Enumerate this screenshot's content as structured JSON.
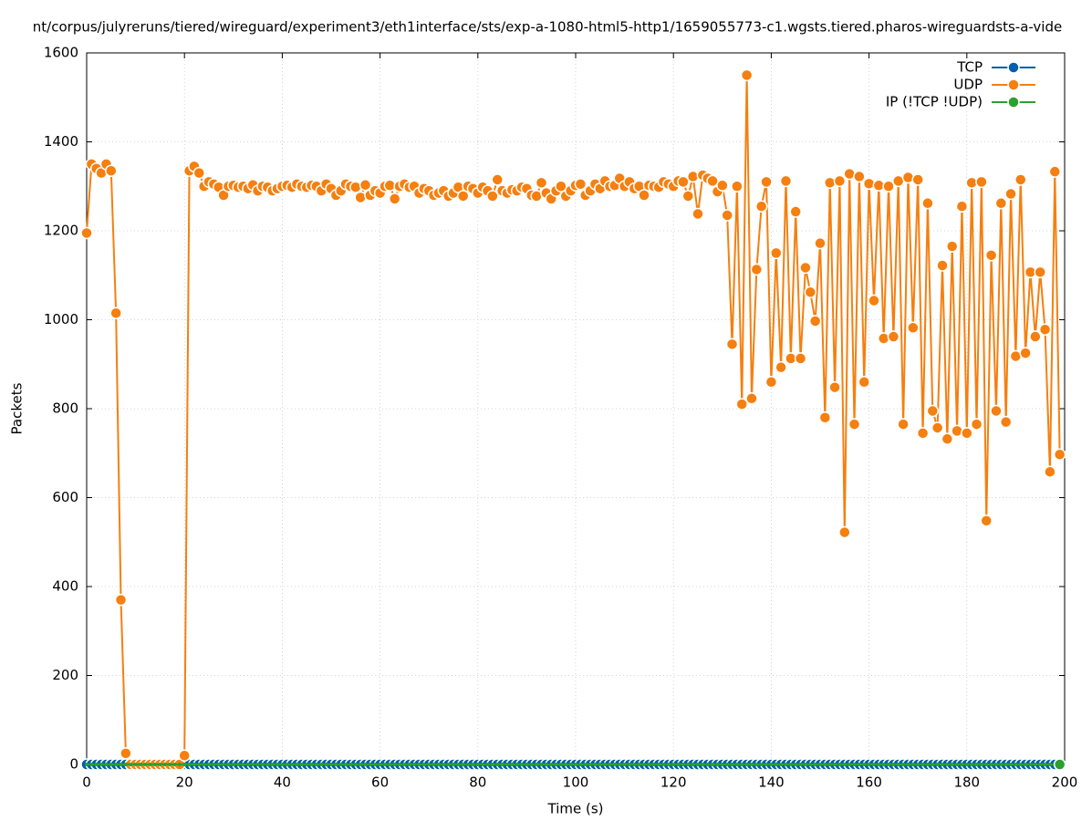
{
  "chart_data": {
    "type": "line",
    "title": "nt/corpus/julyreruns/tiered/wireguard/experiment3/eth1interface/sts/exp-a-1080-html5-http1/1659055773-c1.wgsts.tiered.pharos-wireguardsts-a-vide",
    "xlabel": "Time (s)",
    "ylabel": "Packets",
    "x": [
      0,
      1,
      2,
      3,
      4,
      5,
      6,
      7,
      8,
      9,
      10,
      11,
      12,
      13,
      14,
      15,
      16,
      17,
      18,
      19,
      20,
      21,
      22,
      23,
      24,
      25,
      26,
      27,
      28,
      29,
      30,
      31,
      32,
      33,
      34,
      35,
      36,
      37,
      38,
      39,
      40,
      41,
      42,
      43,
      44,
      45,
      46,
      47,
      48,
      49,
      50,
      51,
      52,
      53,
      54,
      55,
      56,
      57,
      58,
      59,
      60,
      61,
      62,
      63,
      64,
      65,
      66,
      67,
      68,
      69,
      70,
      71,
      72,
      73,
      74,
      75,
      76,
      77,
      78,
      79,
      80,
      81,
      82,
      83,
      84,
      85,
      86,
      87,
      88,
      89,
      90,
      91,
      92,
      93,
      94,
      95,
      96,
      97,
      98,
      99,
      100,
      101,
      102,
      103,
      104,
      105,
      106,
      107,
      108,
      109,
      110,
      111,
      112,
      113,
      114,
      115,
      116,
      117,
      118,
      119,
      120,
      121,
      122,
      123,
      124,
      125,
      126,
      127,
      128,
      129,
      130,
      131,
      132,
      133,
      134,
      135,
      136,
      137,
      138,
      139,
      140,
      141,
      142,
      143,
      144,
      145,
      146,
      147,
      148,
      149,
      150,
      151,
      152,
      153,
      154,
      155,
      156,
      157,
      158,
      159,
      160,
      161,
      162,
      163,
      164,
      165,
      166,
      167,
      168,
      169,
      170,
      171,
      172,
      173,
      174,
      175,
      176,
      177,
      178,
      179,
      180,
      181,
      182,
      183,
      184,
      185,
      186,
      187,
      188,
      189,
      190,
      191,
      192,
      193,
      194,
      195,
      196,
      197,
      198,
      199
    ],
    "series": [
      {
        "name": "TCP",
        "color": "#0060ad",
        "values": [
          0,
          0,
          0,
          0,
          0,
          0,
          0,
          0,
          0,
          0,
          0,
          0,
          0,
          0,
          0,
          0,
          0,
          0,
          0,
          0,
          0,
          0,
          0,
          0,
          0,
          0,
          0,
          0,
          0,
          0,
          0,
          0,
          0,
          0,
          0,
          0,
          0,
          0,
          0,
          0,
          0,
          0,
          0,
          0,
          0,
          0,
          0,
          0,
          0,
          0,
          0,
          0,
          0,
          0,
          0,
          0,
          0,
          0,
          0,
          0,
          0,
          0,
          0,
          0,
          0,
          0,
          0,
          0,
          0,
          0,
          0,
          0,
          0,
          0,
          0,
          0,
          0,
          0,
          0,
          0,
          0,
          0,
          0,
          0,
          0,
          0,
          0,
          0,
          0,
          0,
          0,
          0,
          0,
          0,
          0,
          0,
          0,
          0,
          0,
          0,
          0,
          0,
          0,
          0,
          0,
          0,
          0,
          0,
          0,
          0,
          0,
          0,
          0,
          0,
          0,
          0,
          0,
          0,
          0,
          0,
          0,
          0,
          0,
          0,
          0,
          0,
          0,
          0,
          0,
          0,
          0,
          0,
          0,
          0,
          0,
          0,
          0,
          0,
          0,
          0,
          0,
          0,
          0,
          0,
          0,
          0,
          0,
          0,
          0,
          0,
          0,
          0,
          0,
          0,
          0,
          0,
          0,
          0,
          0,
          0,
          0,
          0,
          0,
          0,
          0,
          0,
          0,
          0,
          0,
          0,
          0,
          0,
          0,
          0,
          0,
          0,
          0,
          0,
          0,
          0,
          0,
          0,
          0,
          0,
          0,
          0,
          0,
          0,
          0,
          0,
          0,
          0,
          0,
          0,
          0,
          0,
          0,
          0,
          0,
          0
        ]
      },
      {
        "name": "UDP",
        "color": "#f57f0f",
        "values": [
          1195,
          1350,
          1340,
          1330,
          1350,
          1335,
          1015,
          370,
          25,
          0,
          0,
          0,
          0,
          0,
          0,
          0,
          0,
          0,
          0,
          0,
          20,
          1335,
          1345,
          1330,
          1300,
          1310,
          1305,
          1298,
          1280,
          1300,
          1302,
          1298,
          1300,
          1295,
          1303,
          1290,
          1300,
          1298,
          1290,
          1295,
          1300,
          1302,
          1298,
          1305,
          1300,
          1298,
          1302,
          1300,
          1290,
          1305,
          1295,
          1280,
          1290,
          1305,
          1300,
          1298,
          1275,
          1303,
          1280,
          1290,
          1285,
          1300,
          1302,
          1272,
          1300,
          1305,
          1298,
          1300,
          1285,
          1295,
          1290,
          1280,
          1285,
          1290,
          1278,
          1285,
          1298,
          1278,
          1300,
          1295,
          1285,
          1298,
          1290,
          1278,
          1315,
          1290,
          1285,
          1292,
          1290,
          1298,
          1295,
          1280,
          1278,
          1308,
          1285,
          1272,
          1290,
          1300,
          1278,
          1290,
          1302,
          1305,
          1280,
          1290,
          1305,
          1295,
          1312,
          1300,
          1302,
          1318,
          1300,
          1310,
          1295,
          1300,
          1280,
          1302,
          1300,
          1298,
          1310,
          1305,
          1300,
          1312,
          1310,
          1278,
          1322,
          1238,
          1325,
          1318,
          1312,
          1288,
          1302,
          1235,
          945,
          1300,
          810,
          1550,
          823,
          1113,
          1255,
          1310,
          860,
          1150,
          893,
          1312,
          913,
          1243,
          913,
          1117,
          1062,
          997,
          1172,
          780,
          1308,
          848,
          1312,
          522,
          1328,
          765,
          1322,
          860,
          1306,
          1043,
          1302,
          958,
          1300,
          962,
          1312,
          765,
          1320,
          982,
          1315,
          745,
          1262,
          795,
          757,
          1122,
          732,
          1165,
          750,
          1255,
          745,
          1308,
          765,
          1310,
          548,
          1145,
          795,
          1262,
          770,
          1283,
          918,
          1315,
          925,
          1107,
          962,
          1107,
          978,
          658,
          1333,
          697
        ]
      },
      {
        "name": "IP (!TCP  !UDP)",
        "color": "#2ca02c",
        "values": [
          0,
          0,
          0,
          0,
          0,
          0,
          0,
          0,
          0,
          0,
          0,
          0,
          0,
          0,
          0,
          0,
          0,
          0,
          0,
          0,
          0,
          0,
          0,
          0,
          0,
          0,
          0,
          0,
          0,
          0,
          0,
          0,
          0,
          0,
          0,
          0,
          0,
          0,
          0,
          0,
          0,
          0,
          0,
          0,
          0,
          0,
          0,
          0,
          0,
          0,
          0,
          0,
          0,
          0,
          0,
          0,
          0,
          0,
          0,
          0,
          0,
          0,
          0,
          0,
          0,
          0,
          0,
          0,
          0,
          0,
          0,
          0,
          0,
          0,
          0,
          0,
          0,
          0,
          0,
          0,
          0,
          0,
          0,
          0,
          0,
          0,
          0,
          0,
          0,
          0,
          0,
          0,
          0,
          0,
          0,
          0,
          0,
          0,
          0,
          0,
          0,
          0,
          0,
          0,
          0,
          0,
          0,
          0,
          0,
          0,
          0,
          0,
          0,
          0,
          0,
          0,
          0,
          0,
          0,
          0,
          0,
          0,
          0,
          0,
          0,
          0,
          0,
          0,
          0,
          0,
          0,
          0,
          0,
          0,
          0,
          0,
          0,
          0,
          0,
          0,
          0,
          0,
          0,
          0,
          0,
          0,
          0,
          0,
          0,
          0,
          0,
          0,
          0,
          0,
          0,
          0,
          0,
          0,
          0,
          0,
          0,
          0,
          0,
          0,
          0,
          0,
          0,
          0,
          0,
          0,
          0,
          0,
          0,
          0,
          0,
          0,
          0,
          0,
          0,
          0,
          0,
          0,
          0,
          0,
          0,
          0,
          0,
          0,
          0,
          0,
          0,
          0,
          0,
          0,
          0,
          0,
          0,
          0,
          0,
          0
        ]
      }
    ],
    "xlim": [
      0,
      200
    ],
    "xticks": [
      0,
      20,
      40,
      60,
      80,
      100,
      120,
      140,
      160,
      180,
      200
    ],
    "ylim": [
      0,
      1600
    ],
    "yticks": [
      0,
      200,
      400,
      600,
      800,
      1000,
      1200,
      1400,
      1600
    ],
    "grid": true,
    "legend": "top right"
  }
}
